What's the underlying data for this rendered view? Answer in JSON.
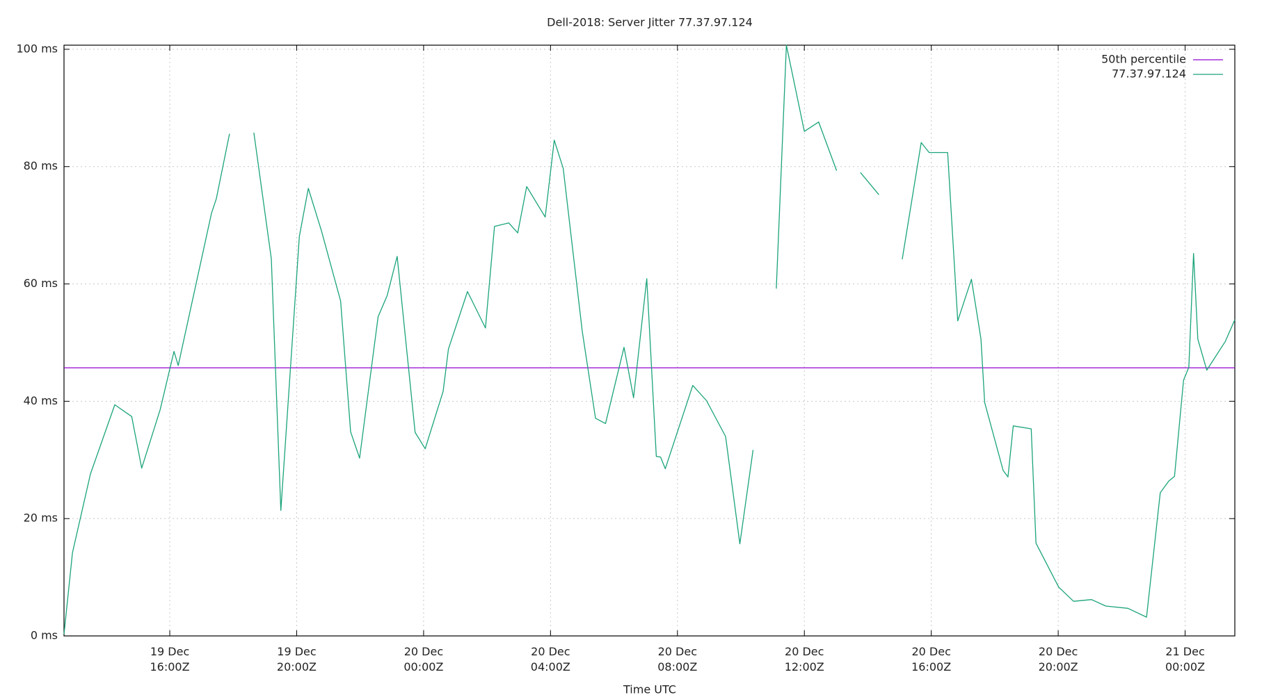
{
  "chart_data": {
    "type": "line",
    "title": "Dell-2018: Server Jitter 77.37.97.124",
    "xlabel": "Time UTC",
    "grid": true,
    "legend": "top-right",
    "xlim": [
      "19 Dec 12:40Z",
      "21 Dec 01:34Z"
    ],
    "xticks": [
      "19 Dec 16:00Z",
      "19 Dec 20:00Z",
      "20 Dec 00:00Z",
      "20 Dec 04:00Z",
      "20 Dec 08:00Z",
      "20 Dec 12:00Z",
      "20 Dec 16:00Z",
      "20 Dec 20:00Z",
      "21 Dec 00:00Z"
    ],
    "ylim": [
      0,
      100.7
    ],
    "yticks": [
      {
        "value": 0,
        "label": "0 ms"
      },
      {
        "value": 20,
        "label": "20 ms"
      },
      {
        "value": 40,
        "label": "40 ms"
      },
      {
        "value": 60,
        "label": "60 ms"
      },
      {
        "value": 80,
        "label": "80 ms"
      },
      {
        "value": 100,
        "label": "100 ms"
      }
    ],
    "x": [
      "19 Dec 12:40Z",
      "19 Dec 12:56Z",
      "19 Dec 13:30Z",
      "19 Dec 14:16Z",
      "19 Dec 14:48Z",
      "19 Dec 15:07Z",
      "19 Dec 15:42Z",
      "19 Dec 16:08Z",
      "19 Dec 16:16Z",
      "19 Dec 17:19Z",
      "19 Dec 17:28Z",
      "19 Dec 17:53Z",
      "19 Dec 18:16Z",
      "19 Dec 18:39Z",
      "19 Dec 19:12Z",
      "19 Dec 19:30Z",
      "19 Dec 20:05Z",
      "19 Dec 20:22Z",
      "19 Dec 20:47Z",
      "19 Dec 21:23Z",
      "19 Dec 21:42Z",
      "19 Dec 21:59Z",
      "19 Dec 22:34Z",
      "19 Dec 22:51Z",
      "19 Dec 23:10Z",
      "19 Dec 23:44Z",
      "20 Dec 00:03Z",
      "20 Dec 00:37Z",
      "20 Dec 00:47Z",
      "20 Dec 01:23Z",
      "20 Dec 01:57Z",
      "20 Dec 02:14Z",
      "20 Dec 02:41Z",
      "20 Dec 02:58Z",
      "20 Dec 03:15Z",
      "20 Dec 03:50Z",
      "20 Dec 04:07Z",
      "20 Dec 04:24Z",
      "20 Dec 05:00Z",
      "20 Dec 05:25Z",
      "20 Dec 05:44Z",
      "20 Dec 06:19Z",
      "20 Dec 06:37Z",
      "20 Dec 07:02Z",
      "20 Dec 07:20Z",
      "20 Dec 07:28Z",
      "20 Dec 07:37Z",
      "20 Dec 08:29Z",
      "20 Dec 08:55Z",
      "20 Dec 09:31Z",
      "20 Dec 09:58Z",
      "20 Dec 10:23Z",
      "20 Dec 10:45Z",
      "20 Dec 11:07Z",
      "20 Dec 11:26Z",
      "20 Dec 12:00Z",
      "20 Dec 12:27Z",
      "20 Dec 13:01Z",
      "20 Dec 13:23Z",
      "20 Dec 13:46Z",
      "20 Dec 14:21Z",
      "20 Dec 14:43Z",
      "20 Dec 15:05Z",
      "20 Dec 15:41Z",
      "20 Dec 15:56Z",
      "20 Dec 16:31Z",
      "20 Dec 16:50Z",
      "20 Dec 17:16Z",
      "20 Dec 17:34Z",
      "20 Dec 17:41Z",
      "20 Dec 18:16Z",
      "20 Dec 18:25Z",
      "20 Dec 18:35Z",
      "20 Dec 19:09Z",
      "20 Dec 19:18Z",
      "20 Dec 20:01Z",
      "20 Dec 20:29Z",
      "20 Dec 21:03Z",
      "20 Dec 21:30Z",
      "20 Dec 22:12Z",
      "20 Dec 22:47Z",
      "20 Dec 23:13Z",
      "20 Dec 23:29Z",
      "20 Dec 23:40Z",
      "20 Dec 23:57Z",
      "21 Dec 00:07Z",
      "21 Dec 00:16Z",
      "21 Dec 00:24Z",
      "21 Dec 00:41Z",
      "21 Dec 01:16Z",
      "21 Dec 01:34Z"
    ],
    "series": [
      {
        "name": "50th percentile",
        "color": "#9400d3",
        "y": 45.7
      },
      {
        "name": "77.37.97.124",
        "color": "#1aa37a",
        "values": [
          0.3,
          14.2,
          27.6,
          39.4,
          37.4,
          28.6,
          38.6,
          48.5,
          46.1,
          72.1,
          74.5,
          85.6,
          null,
          85.8,
          64.3,
          21.4,
          68.1,
          76.3,
          69.0,
          57.1,
          34.8,
          30.3,
          54.4,
          58.0,
          64.7,
          34.7,
          31.9,
          41.7,
          48.9,
          58.7,
          52.5,
          69.8,
          70.4,
          68.7,
          76.6,
          71.4,
          84.5,
          79.7,
          51.9,
          37.1,
          36.2,
          49.2,
          40.6,
          60.9,
          30.6,
          30.5,
          28.5,
          42.7,
          40.1,
          34.0,
          15.7,
          31.7,
          null,
          59.2,
          100.7,
          86.0,
          87.6,
          79.3,
          null,
          79.0,
          75.2,
          null,
          64.2,
          84.1,
          82.4,
          82.4,
          53.7,
          60.8,
          50.6,
          39.8,
          28.2,
          27.1,
          35.8,
          35.3,
          15.8,
          8.3,
          5.9,
          6.2,
          5.1,
          4.7,
          3.2,
          24.4,
          26.4,
          27.2,
          43.6,
          45.8,
          65.2,
          50.6,
          45.3,
          50.2,
          53.9
        ]
      }
    ]
  }
}
